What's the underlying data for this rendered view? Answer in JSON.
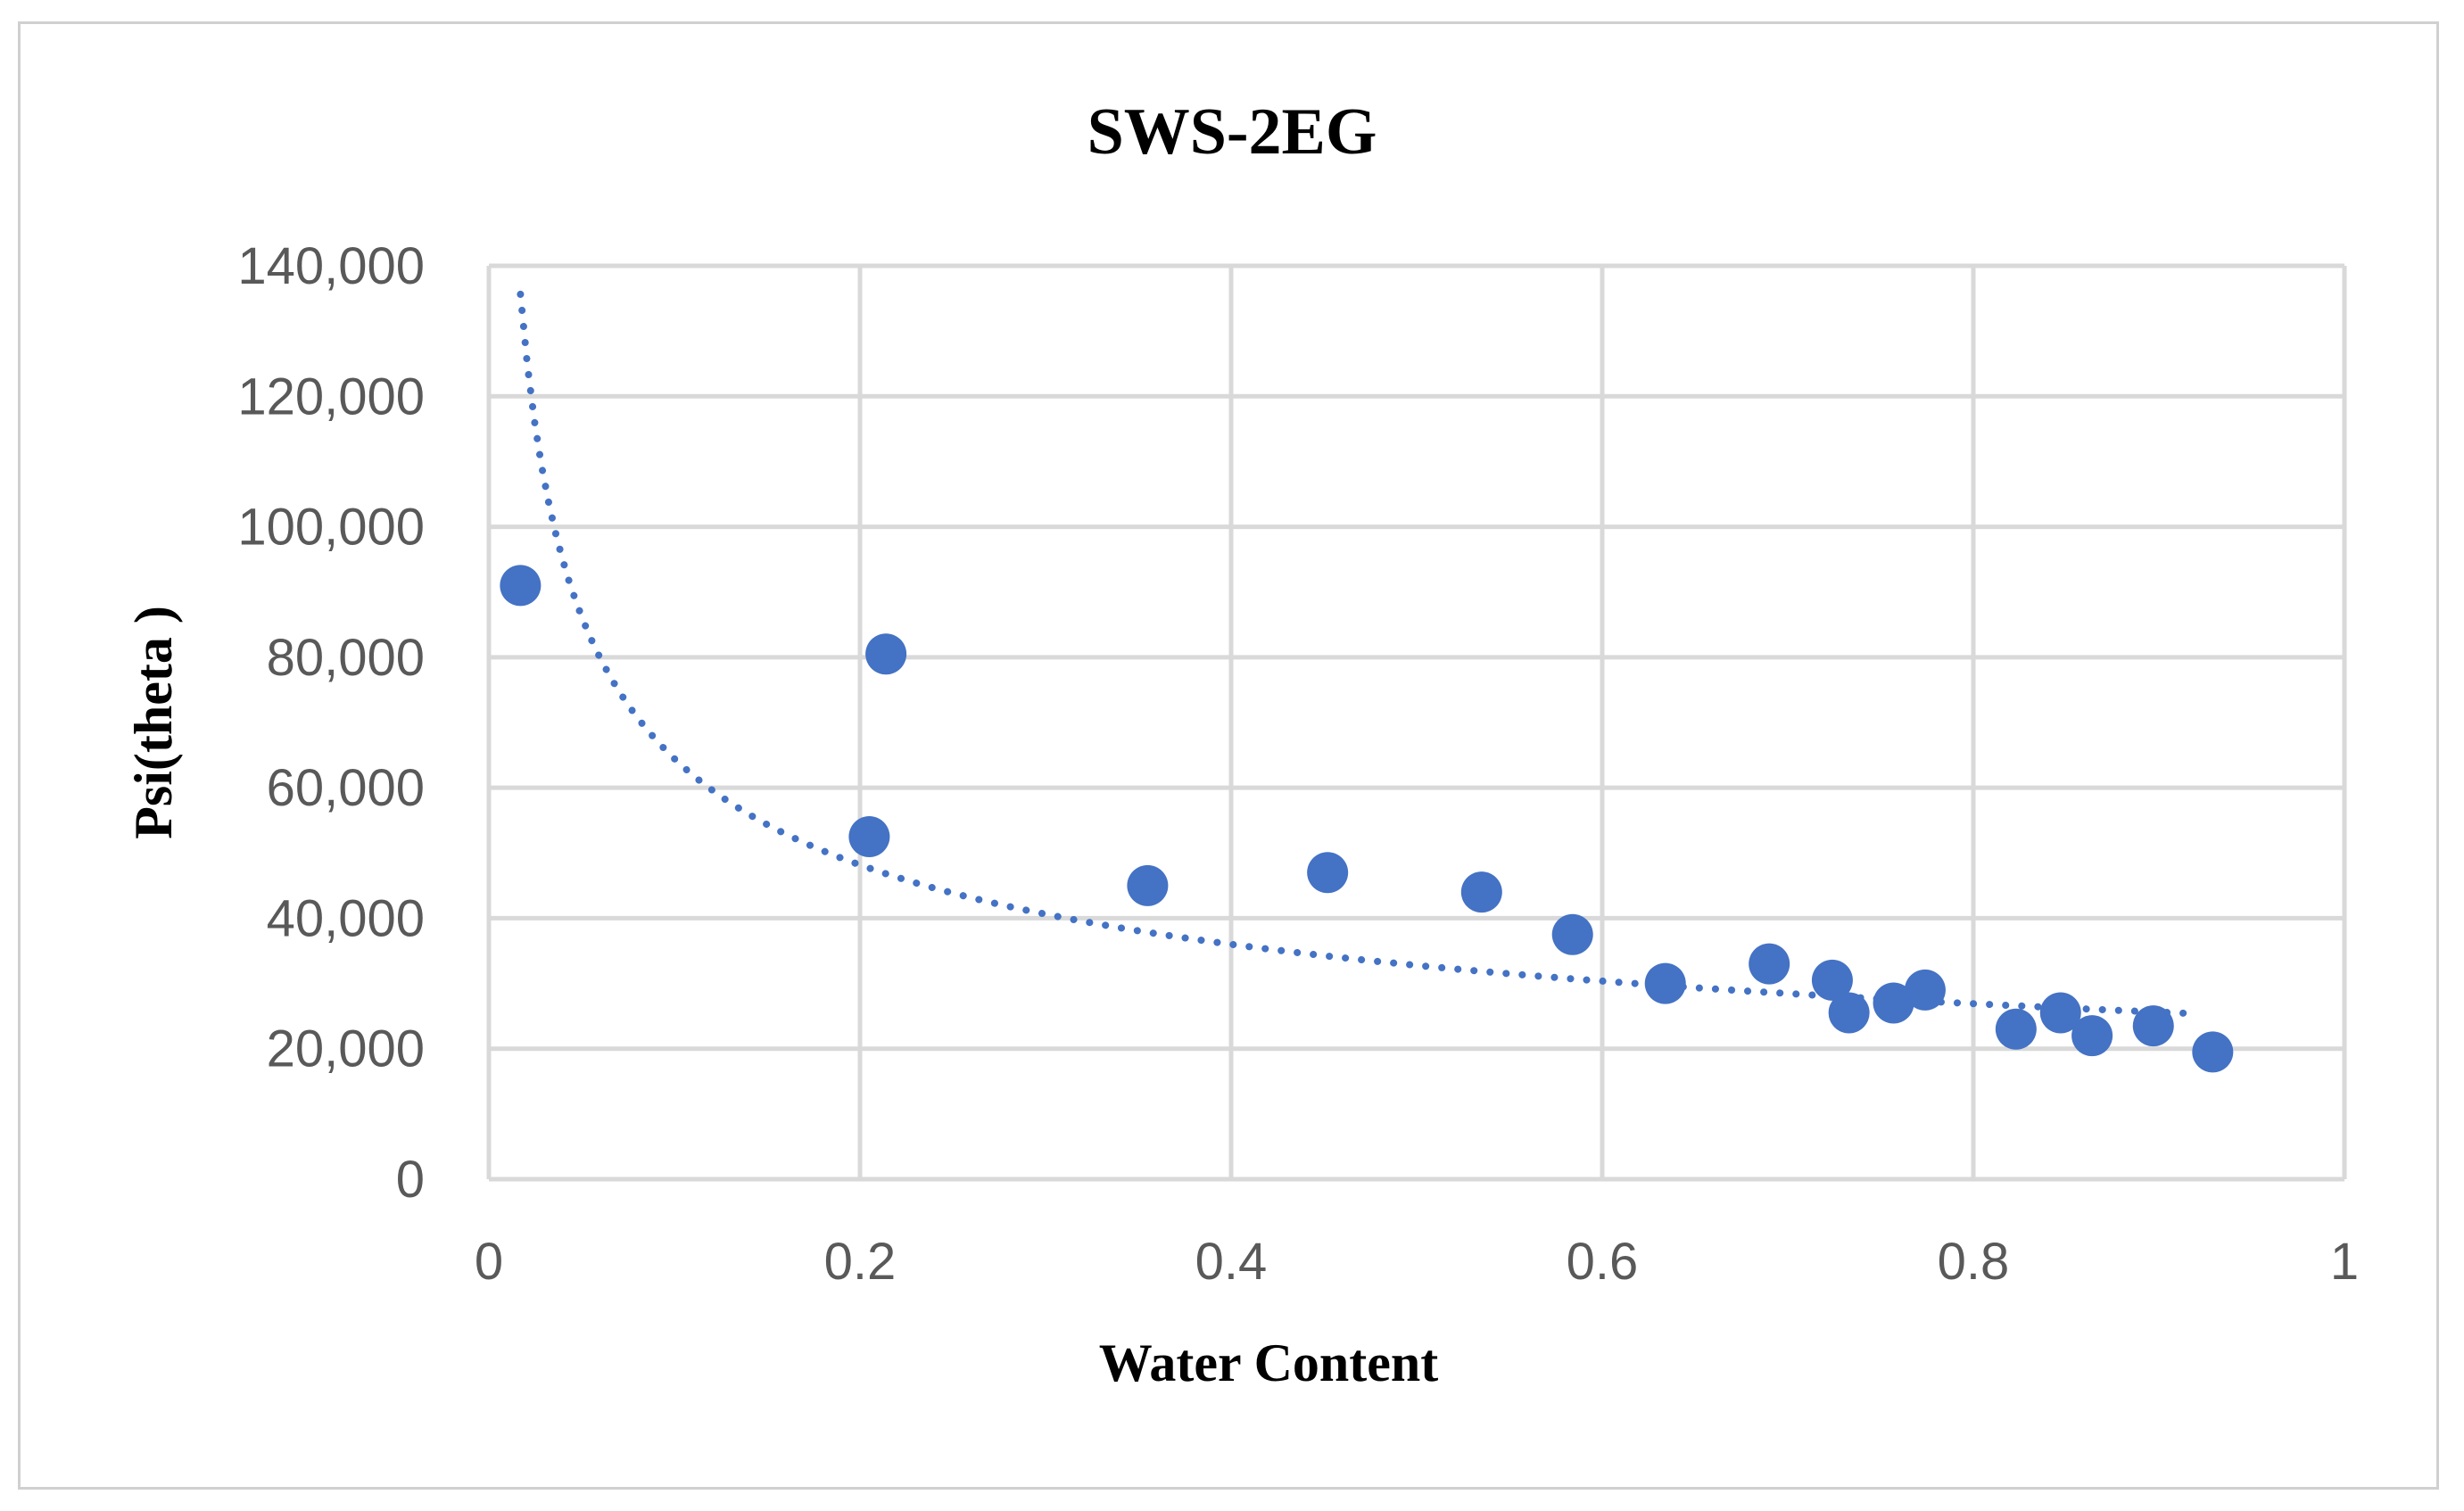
{
  "chart_data": {
    "type": "scatter",
    "title": "SWS-2EG",
    "xlabel": "Water Content",
    "ylabel": "Psi(theta )",
    "xlim": [
      0,
      1
    ],
    "ylim": [
      0,
      140000
    ],
    "x_ticks": [
      0,
      0.2,
      0.4,
      0.6,
      0.8,
      1
    ],
    "x_tick_labels": [
      "0",
      "0.2",
      "0.4",
      "0.6",
      "0.8",
      "1"
    ],
    "y_ticks": [
      0,
      20000,
      40000,
      60000,
      80000,
      100000,
      120000,
      140000
    ],
    "y_tick_labels": [
      "0",
      "20,000",
      "40,000",
      "60,000",
      "80,000",
      "100,000",
      "120,000",
      "140,000"
    ],
    "grid": true,
    "color": "#4472c4",
    "series": [
      {
        "name": "Psi(theta)",
        "x": [
          0.017,
          0.205,
          0.214,
          0.355,
          0.452,
          0.535,
          0.584,
          0.634,
          0.69,
          0.724,
          0.733,
          0.757,
          0.774,
          0.823,
          0.847,
          0.864,
          0.897,
          0.929
        ],
        "y": [
          91000,
          52500,
          80500,
          45000,
          47000,
          44000,
          37500,
          30000,
          33000,
          30500,
          25500,
          27000,
          29000,
          23000,
          25500,
          22000,
          23500,
          19500
        ]
      }
    ],
    "trendline": {
      "type": "power",
      "style": "dotted",
      "x_range": [
        0.017,
        0.92
      ],
      "coefficient": 24500,
      "exponent": -0.42
    }
  }
}
